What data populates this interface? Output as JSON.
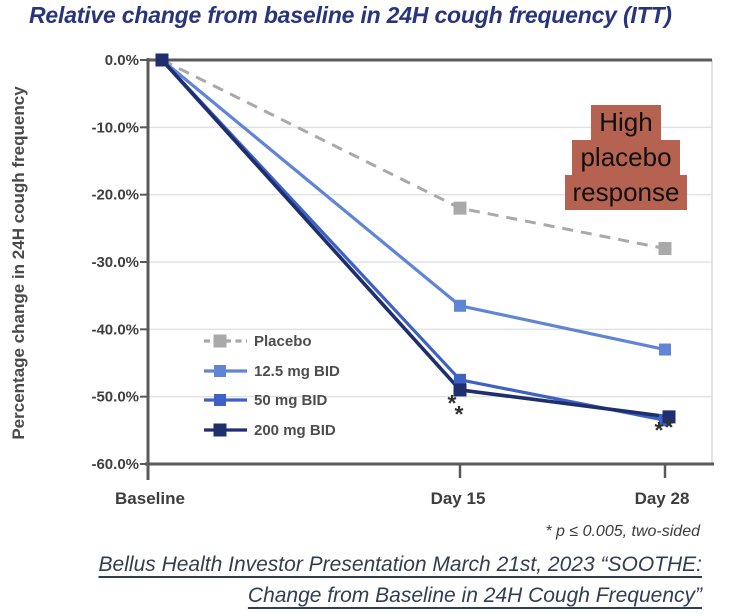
{
  "title": "Relative change from baseline in 24H cough frequency (ITT)",
  "annotation": {
    "lines": [
      "High",
      "placebo",
      "response"
    ]
  },
  "footnote": "* p ≤ 0.005, two-sided",
  "citation": {
    "line1": "Bellus Health Investor Presentation March 21st, 2023 “SOOTHE:",
    "line2": "Change from Baseline in 24H Cough Frequency”"
  },
  "colors": {
    "title": "#28357c",
    "annotation_bg": "#b66251",
    "citation": "#323d52",
    "axis_frame": "#595959",
    "gridline": "#e2e2e2",
    "right_border": "#d9d9d9",
    "tick_text": "#3f3f3f",
    "legend_text": "#4d4d4d",
    "asterisk": "#2f2f2f"
  },
  "chart_data": {
    "type": "line",
    "title": "Relative change from baseline in 24H cough frequency (ITT)",
    "categories": [
      "Baseline",
      "Day 15",
      "Day 28"
    ],
    "ylabel": "Percentage change in 24H cough frequency",
    "ylim": [
      -60,
      0
    ],
    "yticks": [
      0,
      -10,
      -20,
      -30,
      -40,
      -50,
      -60
    ],
    "ytick_labels": [
      "0.0%",
      "-10.0%",
      "-20.0%",
      "-30.0%",
      "-40.0%",
      "-50.0%",
      "-60.0%"
    ],
    "grid": true,
    "legend_position": "inside-lower-left",
    "series": [
      {
        "name": "Placebo",
        "values": [
          0,
          -22,
          -28
        ],
        "color": "#a9a9a9",
        "style": "dashed",
        "significant": [
          false,
          false,
          false
        ]
      },
      {
        "name": "12.5 mg BID",
        "values": [
          0,
          -36.5,
          -43
        ],
        "color": "#6185d6",
        "style": "solid",
        "significant": [
          false,
          false,
          false
        ]
      },
      {
        "name": "50 mg BID",
        "values": [
          0,
          -47.5,
          -53.5
        ],
        "color": "#3e61c4",
        "style": "solid",
        "significant": [
          false,
          true,
          true
        ]
      },
      {
        "name": "200 mg BID",
        "values": [
          0,
          -49,
          -53
        ],
        "color": "#1e2e6e",
        "style": "solid",
        "significant": [
          false,
          true,
          true
        ]
      }
    ],
    "significance_marker": "*",
    "significance_note": "* p ≤ 0.005, two-sided"
  }
}
